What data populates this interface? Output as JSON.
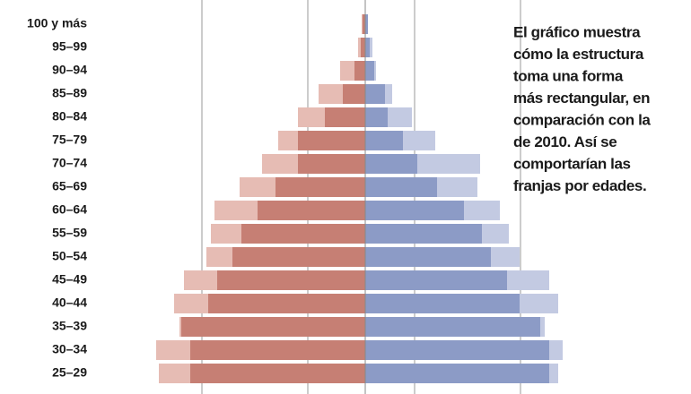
{
  "chart_data": {
    "type": "pyramid",
    "categories": [
      "100 y más",
      "95–99",
      "90–94",
      "85–89",
      "80–84",
      "75–79",
      "70–74",
      "65–69",
      "60–64",
      "55–59",
      "50–54",
      "45–49",
      "40–44",
      "35–39",
      "30–34",
      "25–29"
    ],
    "xlim": [
      -240,
      240
    ],
    "series": [
      {
        "color": "#e6bcb4",
        "values": [
          -4,
          -8,
          -28,
          -52,
          -75,
          -97,
          -115,
          -140,
          -168,
          -172,
          -177,
          -202,
          -213,
          -207,
          -233,
          -230
        ]
      },
      {
        "color": "#c67f74",
        "values": [
          -3,
          -5,
          -12,
          -25,
          -45,
          -75,
          -75,
          -100,
          -120,
          -138,
          -148,
          -165,
          -175,
          -205,
          -195,
          -195
        ]
      },
      {
        "color": "#c3cae2",
        "values": [
          3,
          8,
          12,
          30,
          52,
          78,
          128,
          125,
          150,
          160,
          172,
          205,
          215,
          200,
          220,
          215
        ]
      },
      {
        "color": "#8c9bc6",
        "values": [
          3,
          5,
          10,
          22,
          25,
          42,
          58,
          80,
          110,
          130,
          140,
          158,
          172,
          195,
          205,
          205
        ]
      }
    ],
    "annotation": [
      "El gráfico muestra",
      "cómo la estructura",
      "toma una forma",
      "más rectangular, en",
      "comparación con la",
      "de 2010. Así se",
      "comportarían las",
      "franjas por edades."
    ]
  }
}
